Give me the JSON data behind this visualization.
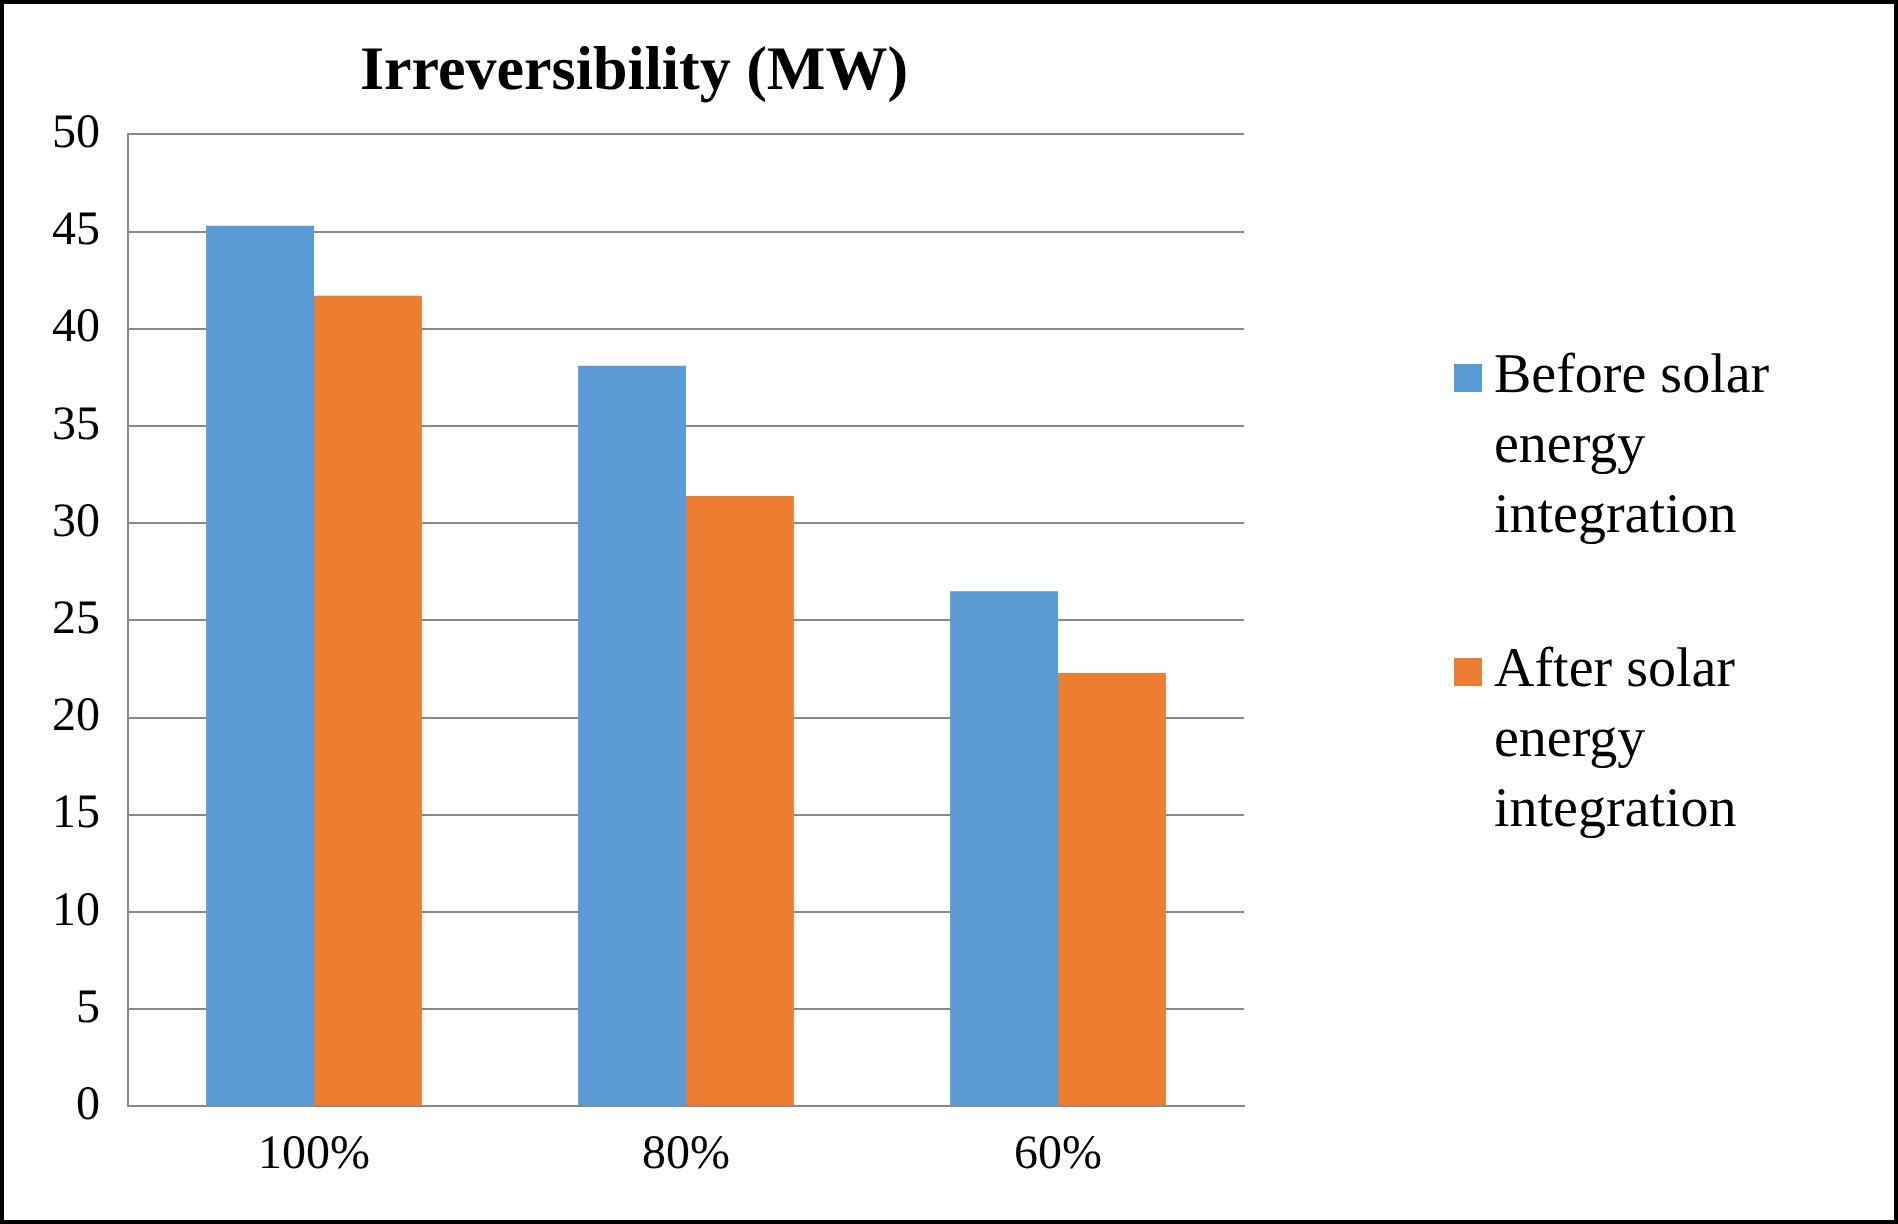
{
  "chart_data": {
    "type": "bar",
    "title": "Irreversibility (MW)",
    "categories": [
      "100%",
      "80%",
      "60%"
    ],
    "series": [
      {
        "name": "Before solar energy integration",
        "color": "#5b9bd5",
        "values": [
          45.3,
          38.1,
          26.5
        ]
      },
      {
        "name": "After solar energy integration",
        "color": "#ed7d31",
        "values": [
          41.7,
          31.4,
          22.3
        ]
      }
    ],
    "ylim": [
      0,
      50
    ],
    "yticks": [
      0,
      5,
      10,
      15,
      20,
      25,
      30,
      35,
      40,
      45,
      50
    ],
    "grid": "y",
    "legend": "right"
  }
}
